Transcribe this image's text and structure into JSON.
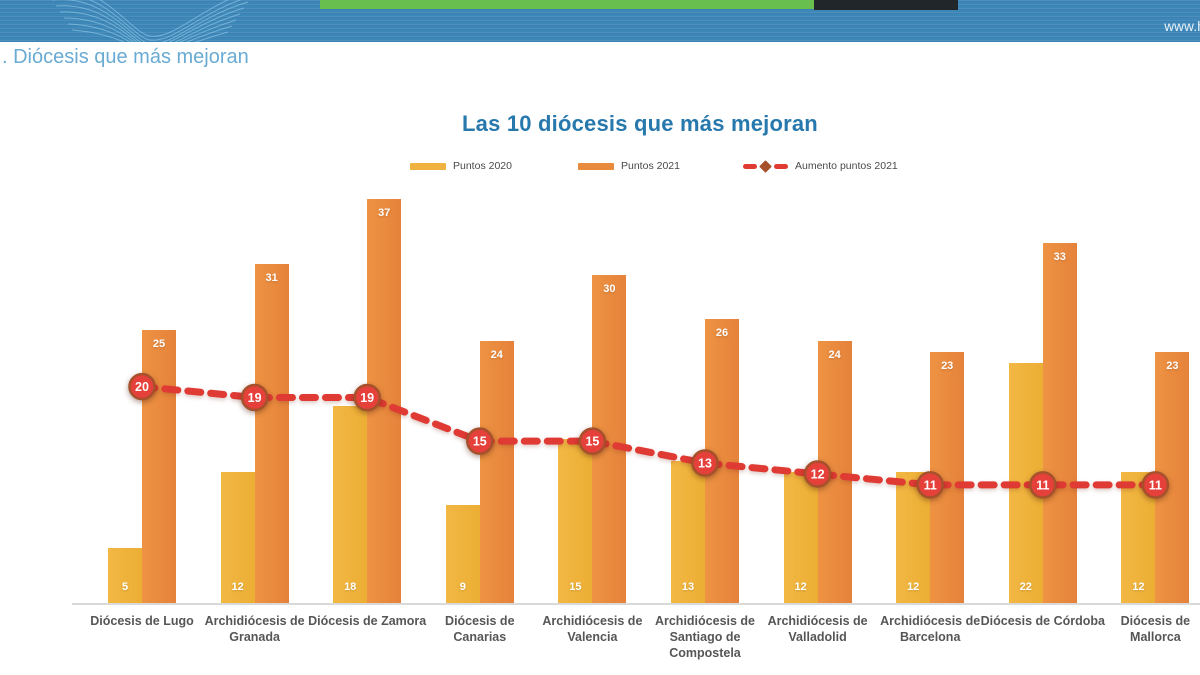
{
  "header": {
    "url_text": "www.h",
    "brand_color": "#3d86b8",
    "green_bar_color": "#68bf4e",
    "dark_bar_color": "#21262a"
  },
  "page": {
    "heading": ". Diócesis que más mejoran"
  },
  "chart_data": {
    "type": "bar",
    "title": "Las 10 diócesis que más mejoran",
    "xlabel": "",
    "ylabel": "",
    "ylim": [
      0,
      38
    ],
    "grid": false,
    "legend_position": "top",
    "value_labels": true,
    "categories": [
      "Diócesis de Lugo",
      "Archidiócesis de Granada",
      "Diócesis de Zamora",
      "Diócesis de Canarias",
      "Archidiócesis de Valencia",
      "Archidiócesis de Santiago de Compostela",
      "Archidiócesis de Valladolid",
      "Archidiócesis de Barcelona",
      "Diócesis de Córdoba",
      "Diócesis de Mallorca"
    ],
    "category_lines": [
      [
        "Diócesis de Lugo"
      ],
      [
        "Archidiócesis de",
        "Granada"
      ],
      [
        "Diócesis de Zamora"
      ],
      [
        "Diócesis de",
        "Canarias"
      ],
      [
        "Archidiócesis de",
        "Valencia"
      ],
      [
        "Archidiócesis de",
        "Santiago de",
        "Compostela"
      ],
      [
        "Archidiócesis de",
        "Valladolid"
      ],
      [
        "Archidiócesis de",
        "Barcelona"
      ],
      [
        "Diócesis de Córdoba"
      ],
      [
        "Diócesis de",
        "Mallorca"
      ]
    ],
    "series": [
      {
        "name": "Puntos 2020",
        "type": "bar",
        "color": "#f0b23e",
        "values": [
          5,
          12,
          18,
          9,
          15,
          13,
          12,
          12,
          22,
          12
        ]
      },
      {
        "name": "Puntos 2021",
        "type": "bar",
        "color": "#e98b3d",
        "values": [
          25,
          31,
          37,
          24,
          30,
          26,
          24,
          23,
          33,
          23
        ]
      },
      {
        "name": "Aumento puntos 2021",
        "type": "line",
        "color": "#df3a33",
        "marker_ring_color": "#a6502c",
        "values": [
          20,
          19,
          19,
          15,
          15,
          13,
          12,
          11,
          11,
          11
        ]
      }
    ],
    "title_color": "#2778ad"
  }
}
